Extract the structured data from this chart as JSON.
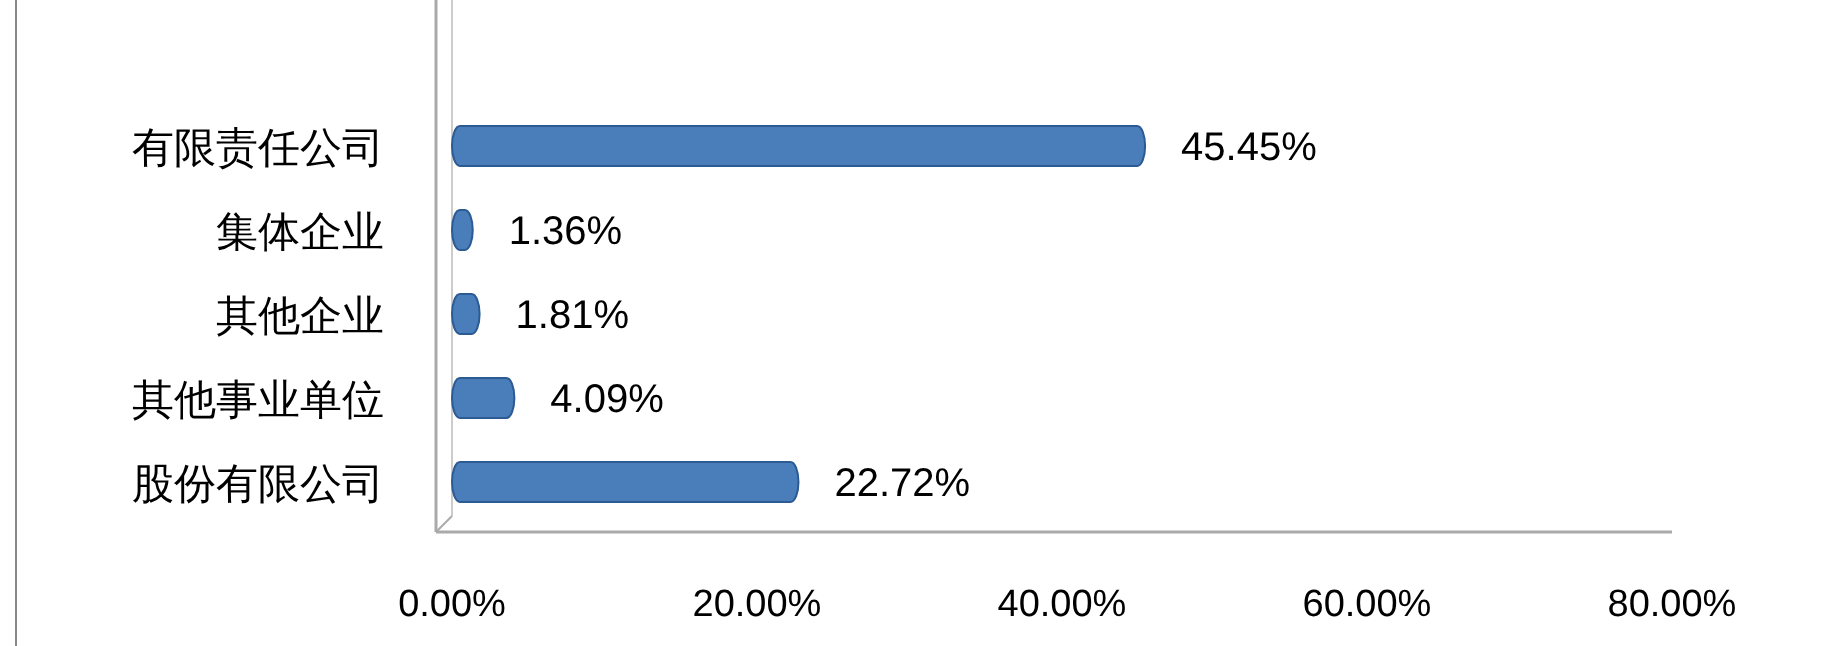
{
  "chart_data": {
    "type": "bar",
    "orientation": "horizontal",
    "categories": [
      "有限责任公司",
      "集体企业",
      "其他企业",
      "其他事业单位",
      "股份有限公司"
    ],
    "values": [
      45.45,
      1.36,
      1.81,
      4.09,
      22.72
    ],
    "value_labels": [
      "45.45%",
      "1.36%",
      "1.81%",
      "4.09%",
      "22.72%"
    ],
    "color": "#4a7ebb",
    "xlim": [
      0,
      80
    ],
    "xticks": [
      {
        "value": 0,
        "label": "0.00%"
      },
      {
        "value": 20,
        "label": "20.00%"
      },
      {
        "value": 40,
        "label": "40.00%"
      },
      {
        "value": 60,
        "label": "60.00%"
      },
      {
        "value": 80,
        "label": "80.00%"
      }
    ]
  }
}
